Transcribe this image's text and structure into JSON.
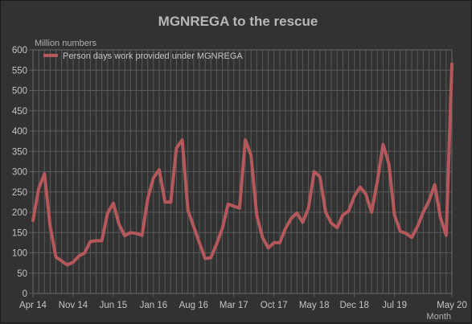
{
  "chart_data": {
    "type": "line",
    "title": "MGNREGA to the rescue",
    "ylabel": "Million numbers",
    "xlabel": "Month",
    "ylim": [
      0,
      600
    ],
    "y_ticks": [
      0,
      50,
      100,
      150,
      200,
      250,
      300,
      350,
      400,
      450,
      500,
      550,
      600
    ],
    "x_tick_labels": [
      "Apr 14",
      "Nov 14",
      "Jun 15",
      "Jan 16",
      "Aug 16",
      "Mar 17",
      "Oct 17",
      "May 18",
      "Dec 18",
      "Jul 19",
      "May 20"
    ],
    "x_tick_index": [
      0,
      7,
      14,
      21,
      28,
      35,
      42,
      49,
      56,
      63,
      73
    ],
    "grid": true,
    "legend_position": "top-left",
    "colors": {
      "series": "#b5585c",
      "grid": "#5a5a5a",
      "plot_border": "#6a6a6a"
    },
    "series": [
      {
        "name": "Person days work provided under MGNREGA",
        "values": [
          180,
          258,
          295,
          165,
          90,
          80,
          70,
          77,
          92,
          100,
          128,
          130,
          130,
          198,
          222,
          170,
          142,
          150,
          148,
          143,
          233,
          285,
          305,
          225,
          225,
          358,
          378,
          205,
          165,
          125,
          86,
          88,
          122,
          160,
          220,
          215,
          210,
          378,
          340,
          192,
          138,
          112,
          125,
          125,
          160,
          185,
          198,
          175,
          210,
          300,
          288,
          200,
          173,
          162,
          193,
          203,
          240,
          262,
          245,
          200,
          275,
          367,
          320,
          193,
          153,
          148,
          138,
          165,
          200,
          228,
          268,
          188,
          143,
          565
        ]
      }
    ]
  }
}
